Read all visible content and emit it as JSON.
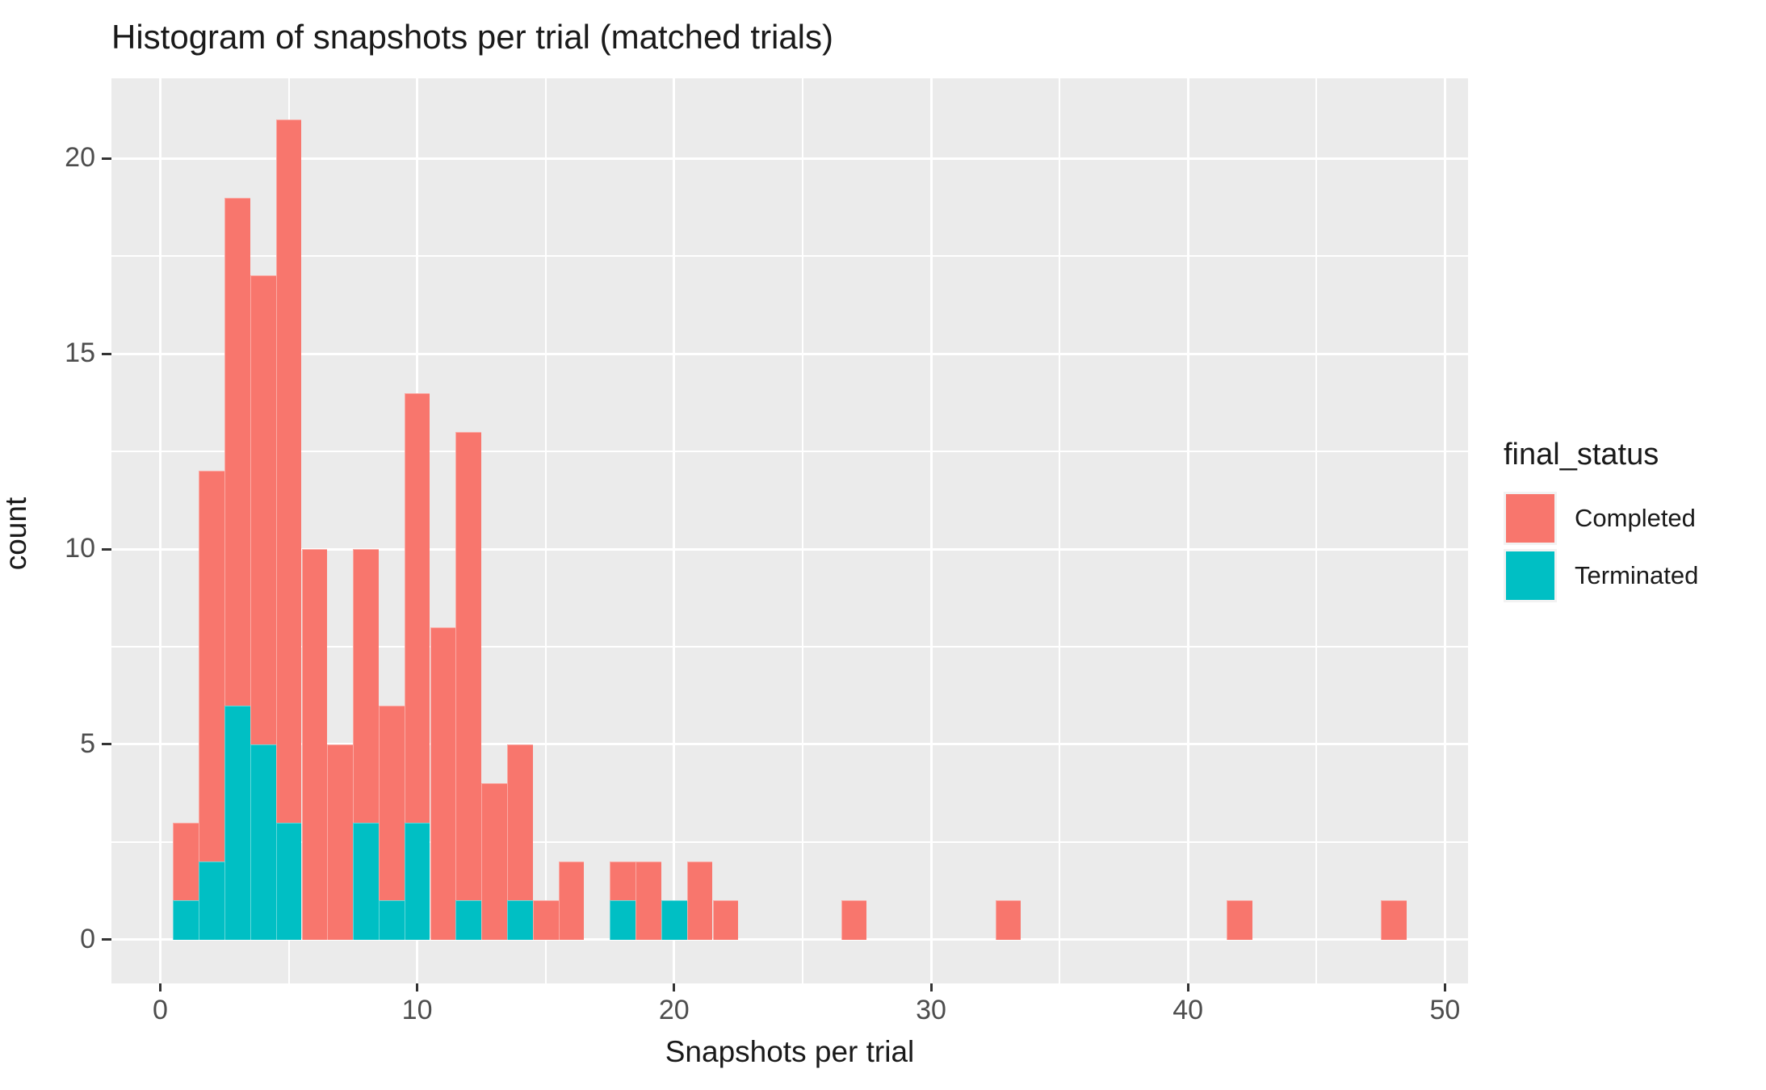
{
  "title": "Histogram of snapshots per trial (matched trials)",
  "chart_data": {
    "type": "bar",
    "subtype": "stacked-histogram",
    "title": "Histogram of snapshots per trial (matched trials)",
    "xlabel": "Snapshots per trial",
    "ylabel": "count",
    "xlim": [
      -1.9,
      50.9
    ],
    "ylim": [
      -1.12,
      22.05
    ],
    "x_ticks": [
      0,
      10,
      20,
      30,
      40,
      50
    ],
    "y_ticks": [
      0,
      5,
      10,
      15,
      20
    ],
    "x_minor_gridlines": [
      5,
      15,
      25,
      35,
      45
    ],
    "y_minor_gridlines": [
      2.5,
      7.5,
      12.5,
      17.5
    ],
    "grid": "on",
    "bin_width": 1,
    "legend": {
      "title": "final_status",
      "position": "right",
      "entries": [
        {
          "label": "Completed",
          "color": "#F8766D"
        },
        {
          "label": "Terminated",
          "color": "#00BFC4"
        }
      ]
    },
    "stack_order_bottom_to_top": [
      "Terminated",
      "Completed"
    ],
    "bins": [
      {
        "x": 1,
        "completed": 2,
        "terminated": 1
      },
      {
        "x": 2,
        "completed": 10,
        "terminated": 2
      },
      {
        "x": 3,
        "completed": 13,
        "terminated": 6
      },
      {
        "x": 4,
        "completed": 12,
        "terminated": 5
      },
      {
        "x": 5,
        "completed": 18,
        "terminated": 3
      },
      {
        "x": 6,
        "completed": 10,
        "terminated": 0
      },
      {
        "x": 7,
        "completed": 5,
        "terminated": 0
      },
      {
        "x": 8,
        "completed": 7,
        "terminated": 3
      },
      {
        "x": 9,
        "completed": 5,
        "terminated": 1
      },
      {
        "x": 10,
        "completed": 11,
        "terminated": 3
      },
      {
        "x": 11,
        "completed": 8,
        "terminated": 0
      },
      {
        "x": 12,
        "completed": 12,
        "terminated": 1
      },
      {
        "x": 13,
        "completed": 4,
        "terminated": 0
      },
      {
        "x": 14,
        "completed": 4,
        "terminated": 1
      },
      {
        "x": 15,
        "completed": 1,
        "terminated": 0
      },
      {
        "x": 16,
        "completed": 2,
        "terminated": 0
      },
      {
        "x": 18,
        "completed": 1,
        "terminated": 1
      },
      {
        "x": 19,
        "completed": 2,
        "terminated": 0
      },
      {
        "x": 20,
        "completed": 0,
        "terminated": 1
      },
      {
        "x": 21,
        "completed": 2,
        "terminated": 0
      },
      {
        "x": 22,
        "completed": 1,
        "terminated": 0
      },
      {
        "x": 27,
        "completed": 1,
        "terminated": 0
      },
      {
        "x": 33,
        "completed": 1,
        "terminated": 0
      },
      {
        "x": 42,
        "completed": 1,
        "terminated": 0
      },
      {
        "x": 48,
        "completed": 1,
        "terminated": 0
      }
    ]
  },
  "colors": {
    "completed": "#F8766D",
    "terminated": "#00BFC4",
    "panel_background": "#EBEBEB",
    "gridline": "#FFFFFF",
    "axis_text": "#4D4D4D",
    "tick_mark": "#333333",
    "text": "#1A1A1A",
    "legend_key_background": "#F2F2F2"
  }
}
